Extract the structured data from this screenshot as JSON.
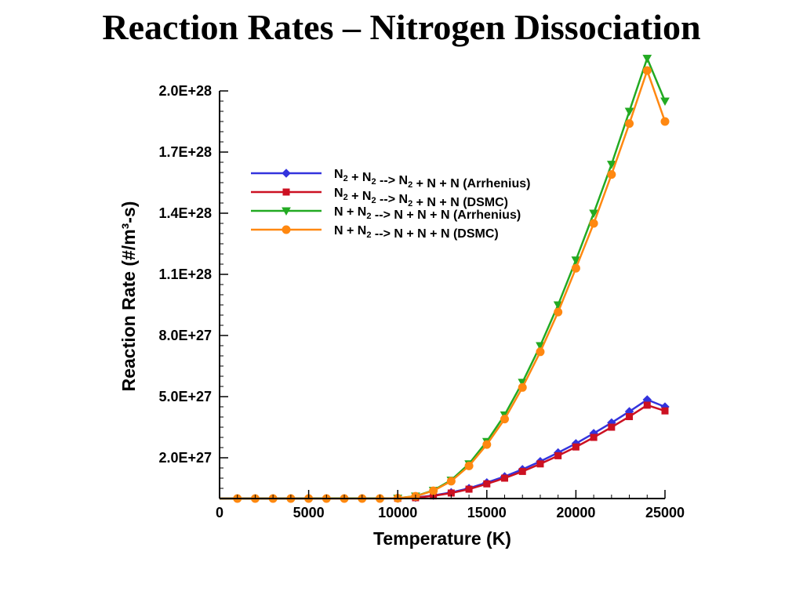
{
  "page": {
    "title": "Reaction Rates – Nitrogen Dissociation"
  },
  "chart_data": {
    "type": "line",
    "xlabel": "Temperature (K)",
    "ylabel": "Reaction Rate (#/m³-s)",
    "xlim": [
      0,
      25000
    ],
    "ylim": [
      0,
      2e+28
    ],
    "x_ticks": [
      "0",
      "5000",
      "10000",
      "15000",
      "20000",
      "25000"
    ],
    "x_tick_values": [
      0,
      5000,
      10000,
      15000,
      20000,
      25000
    ],
    "y_ticks": [
      "2.0E+27",
      "5.0E+27",
      "8.0E+27",
      "1.1E+28",
      "1.4E+28",
      "1.7E+28",
      "2.0E+28"
    ],
    "y_tick_values": [
      2e+27,
      5e+27,
      8e+27,
      1.1e+28,
      1.4e+28,
      1.7e+28,
      2e+28
    ],
    "grid": false,
    "legend_placement": "top-center",
    "series": [
      {
        "name": "N2 + N2 --> N2 + N + N (Arrhenius)",
        "legend": {
          "base": "N",
          "sub1": "2",
          "mid1": " + N",
          "sub2": "2",
          "mid2": " --> N",
          "sub3": "2",
          "tail": " + N + N (Arrhenius)"
        },
        "color": "#3333dd",
        "marker": "diamond",
        "x": [
          10000,
          11000,
          12000,
          13000,
          14000,
          15000,
          16000,
          17000,
          18000,
          19000,
          20000,
          21000,
          22000,
          23000,
          24000,
          25000
        ],
        "y": [
          1e+25,
          5e+25,
          1.5e+26,
          3e+26,
          5e+26,
          7.8e+26,
          1.08e+27,
          1.43e+27,
          1.82e+27,
          2.25e+27,
          2.7e+27,
          3.2e+27,
          3.72e+27,
          4.27e+27,
          4.85e+27,
          4.5e+27
        ]
      },
      {
        "name": "N2 + N2 --> N2 + N + N (DSMC)",
        "legend": {
          "base": "N",
          "sub1": "2",
          "mid1": " + N",
          "sub2": "2",
          "mid2": " --> N",
          "sub3": "2",
          "tail": " + N + N (DSMC)"
        },
        "color": "#cc1122",
        "marker": "square",
        "x": [
          10000,
          11000,
          12000,
          13000,
          14000,
          15000,
          16000,
          17000,
          18000,
          19000,
          20000,
          21000,
          22000,
          23000,
          24000,
          25000
        ],
        "y": [
          1e+25,
          4e+25,
          1.3e+26,
          2.7e+26,
          4.6e+26,
          7.2e+26,
          1e+27,
          1.33e+27,
          1.7e+27,
          2.1e+27,
          2.53e+27,
          3e+27,
          3.5e+27,
          4.02e+27,
          4.58e+27,
          4.3e+27
        ]
      },
      {
        "name": "N + N2 --> N + N + N (Arrhenius)",
        "legend": {
          "base": "N + N",
          "sub1": "2",
          "tail": " --> N + N + N (Arrhenius)"
        },
        "color": "#22aa22",
        "marker": "triangle-down",
        "x": [
          10000,
          11000,
          12000,
          13000,
          14000,
          15000,
          16000,
          17000,
          18000,
          19000,
          20000,
          21000,
          22000,
          23000,
          24000,
          25000
        ],
        "y": [
          1.5e+25,
          1.2e+26,
          4e+26,
          9e+26,
          1.7e+27,
          2.8e+27,
          4.1e+27,
          5.7e+27,
          7.5e+27,
          9.5e+27,
          1.17e+28,
          1.4e+28,
          1.64e+28,
          1.9e+28,
          2.16e+28,
          1.95e+28
        ]
      },
      {
        "name": "N + N2 --> N + N + N (DSMC)",
        "legend": {
          "base": "N + N",
          "sub1": "2",
          "tail": " --> N + N + N (DSMC)"
        },
        "color": "#ff8811",
        "marker": "circle",
        "x": [
          1000,
          2000,
          3000,
          4000,
          5000,
          6000,
          7000,
          8000,
          9000,
          10000,
          11000,
          12000,
          13000,
          14000,
          15000,
          16000,
          17000,
          18000,
          19000,
          20000,
          21000,
          22000,
          23000,
          24000,
          25000
        ],
        "y": [
          0,
          0,
          0,
          0,
          0,
          0,
          0,
          0,
          0,
          1.5e+25,
          1.1e+26,
          3.8e+26,
          8.5e+26,
          1.6e+27,
          2.65e+27,
          3.9e+27,
          5.45e+27,
          7.2e+27,
          9.15e+27,
          1.13e+28,
          1.35e+28,
          1.59e+28,
          1.84e+28,
          2.1e+28,
          1.85e+28
        ]
      }
    ]
  }
}
